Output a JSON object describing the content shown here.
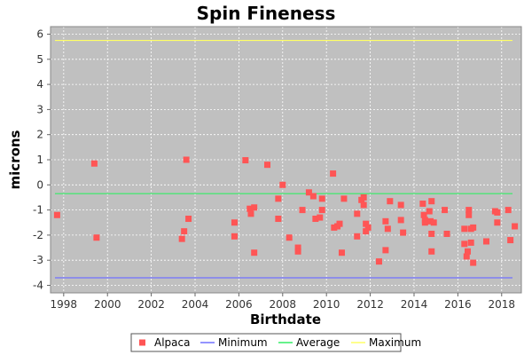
{
  "chart_data": {
    "type": "scatter",
    "title": "Spin Fineness",
    "xlabel": "Birthdate",
    "ylabel": "microns",
    "xlim": [
      1997.4,
      2018.9
    ],
    "ylim": [
      -4.3,
      6.3
    ],
    "x_ticks": [
      1998,
      2000,
      2002,
      2004,
      2006,
      2008,
      2010,
      2012,
      2014,
      2016,
      2018
    ],
    "y_ticks": [
      -4,
      -3,
      -2,
      -1,
      0,
      1,
      2,
      3,
      4,
      5,
      6
    ],
    "grid": true,
    "legend_position": "bottom",
    "colors": {
      "background": "#c0c0c0",
      "grid": "#ffffff",
      "alpaca": "#ff5555",
      "minimum": "#7070ff",
      "average": "#33ee66",
      "maximum": "#ffff66"
    },
    "series": [
      {
        "name": "Alpaca",
        "kind": "points",
        "points": [
          [
            1997.7,
            -1.2
          ],
          [
            1999.4,
            0.85
          ],
          [
            1999.5,
            -2.1
          ],
          [
            2003.4,
            -2.15
          ],
          [
            2003.5,
            -1.85
          ],
          [
            2003.6,
            1.0
          ],
          [
            2003.7,
            -1.35
          ],
          [
            2005.8,
            -1.5
          ],
          [
            2005.8,
            -2.05
          ],
          [
            2006.3,
            0.98
          ],
          [
            2006.5,
            -0.95
          ],
          [
            2006.55,
            -1.15
          ],
          [
            2006.7,
            -0.9
          ],
          [
            2006.7,
            -2.7
          ],
          [
            2007.3,
            0.8
          ],
          [
            2007.8,
            -0.55
          ],
          [
            2007.8,
            -1.35
          ],
          [
            2008.0,
            0.0
          ],
          [
            2008.3,
            -2.1
          ],
          [
            2008.7,
            -2.5
          ],
          [
            2008.7,
            -2.65
          ],
          [
            2008.9,
            -1.0
          ],
          [
            2009.2,
            -0.3
          ],
          [
            2009.4,
            -0.45
          ],
          [
            2009.5,
            -1.35
          ],
          [
            2009.7,
            -1.3
          ],
          [
            2009.8,
            -0.55
          ],
          [
            2009.8,
            -1.0
          ],
          [
            2010.3,
            0.45
          ],
          [
            2010.35,
            -1.7
          ],
          [
            2010.5,
            -1.65
          ],
          [
            2010.6,
            -1.55
          ],
          [
            2010.7,
            -2.7
          ],
          [
            2010.8,
            -0.55
          ],
          [
            2011.4,
            -1.15
          ],
          [
            2011.4,
            -2.05
          ],
          [
            2011.6,
            -0.6
          ],
          [
            2011.7,
            -0.8
          ],
          [
            2011.7,
            -0.5
          ],
          [
            2011.8,
            -1.55
          ],
          [
            2011.8,
            -1.85
          ],
          [
            2011.9,
            -1.7
          ],
          [
            2012.4,
            -3.05
          ],
          [
            2012.7,
            -1.45
          ],
          [
            2012.7,
            -2.6
          ],
          [
            2012.8,
            -1.75
          ],
          [
            2012.9,
            -0.65
          ],
          [
            2013.4,
            -0.8
          ],
          [
            2013.4,
            -1.4
          ],
          [
            2013.5,
            -1.9
          ],
          [
            2014.4,
            -0.75
          ],
          [
            2014.45,
            -1.2
          ],
          [
            2014.5,
            -1.4
          ],
          [
            2014.5,
            -1.5
          ],
          [
            2014.7,
            -1.05
          ],
          [
            2014.75,
            -1.45
          ],
          [
            2014.8,
            -0.65
          ],
          [
            2014.8,
            -1.95
          ],
          [
            2014.8,
            -2.65
          ],
          [
            2014.9,
            -1.5
          ],
          [
            2015.4,
            -1.0
          ],
          [
            2015.5,
            -1.95
          ],
          [
            2016.3,
            -1.75
          ],
          [
            2016.3,
            -2.35
          ],
          [
            2016.4,
            -2.85
          ],
          [
            2016.45,
            -2.65
          ],
          [
            2016.5,
            -1.0
          ],
          [
            2016.5,
            -1.2
          ],
          [
            2016.6,
            -2.3
          ],
          [
            2016.6,
            -1.75
          ],
          [
            2016.7,
            -3.1
          ],
          [
            2016.7,
            -1.7
          ],
          [
            2017.3,
            -2.25
          ],
          [
            2017.7,
            -1.05
          ],
          [
            2017.8,
            -1.1
          ],
          [
            2017.8,
            -1.5
          ],
          [
            2018.3,
            -1.0
          ],
          [
            2018.4,
            -2.2
          ],
          [
            2018.6,
            -1.65
          ]
        ]
      },
      {
        "name": "Minimum",
        "kind": "hline",
        "y": -3.7
      },
      {
        "name": "Average",
        "kind": "hline",
        "y": -0.35
      },
      {
        "name": "Maximum",
        "kind": "hline",
        "y": 5.75
      }
    ]
  }
}
